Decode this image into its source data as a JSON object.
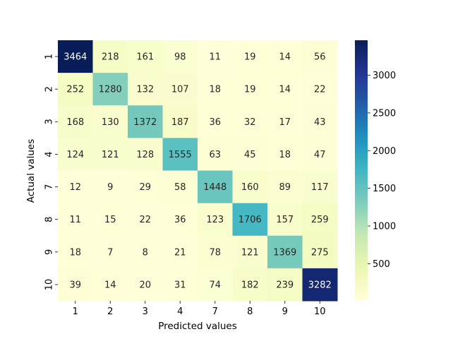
{
  "chart_data": {
    "type": "heatmap",
    "title": "",
    "xlabel": "Predicted values",
    "ylabel": "Actual values",
    "x_categories": [
      "1",
      "2",
      "3",
      "4",
      "7",
      "8",
      "9",
      "10"
    ],
    "y_categories": [
      "1",
      "2",
      "3",
      "4",
      "7",
      "8",
      "9",
      "10"
    ],
    "values": [
      [
        3464,
        218,
        161,
        98,
        11,
        19,
        14,
        56
      ],
      [
        252,
        1280,
        132,
        107,
        18,
        19,
        14,
        22
      ],
      [
        168,
        130,
        1372,
        187,
        36,
        32,
        17,
        43
      ],
      [
        124,
        121,
        128,
        1555,
        63,
        45,
        18,
        47
      ],
      [
        12,
        9,
        29,
        58,
        1448,
        160,
        89,
        117
      ],
      [
        11,
        15,
        22,
        36,
        123,
        1706,
        157,
        259
      ],
      [
        18,
        7,
        8,
        21,
        78,
        121,
        1369,
        275
      ],
      [
        39,
        14,
        20,
        31,
        74,
        182,
        239,
        3282
      ]
    ],
    "colormap": "YlGnBu",
    "vmin": 7,
    "vmax": 3464,
    "colorbar_ticks": [
      500,
      1000,
      1500,
      2000,
      2500,
      3000
    ],
    "colorbar_tick_labels": [
      "500",
      "1000",
      "1500",
      "2000",
      "2500",
      "3000"
    ]
  }
}
